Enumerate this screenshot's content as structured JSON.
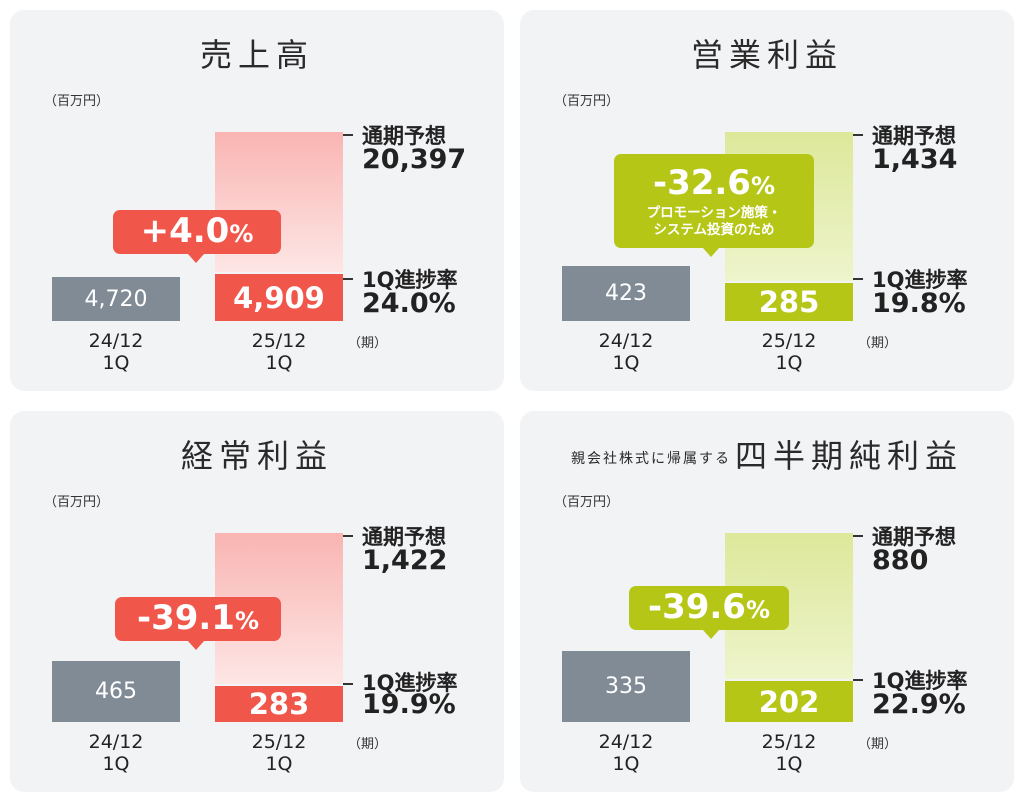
{
  "chart_data": [
    {
      "type": "bar",
      "title": "売上高",
      "unit": "（百万円）",
      "period_label": "（期）",
      "categories": [
        "24/12\n1Q",
        "25/12\n1Q"
      ],
      "values": [
        4720,
        4909
      ],
      "value_labels": [
        "4,720",
        "4,909"
      ],
      "forecast_label": "通期予想",
      "forecast_value": "20,397",
      "progress_label": "1Q進捗率",
      "progress_value": "24.0%",
      "change": "+4.0",
      "change_unit": "%",
      "color": "#f0564a"
    },
    {
      "type": "bar",
      "title": "営業利益",
      "unit": "（百万円）",
      "period_label": "（期）",
      "categories": [
        "24/12\n1Q",
        "25/12\n1Q"
      ],
      "values": [
        423,
        285
      ],
      "value_labels": [
        "423",
        "285"
      ],
      "forecast_label": "通期予想",
      "forecast_value": "1,434",
      "progress_label": "1Q進捗率",
      "progress_value": "19.8%",
      "change": "-32.6",
      "change_unit": "%",
      "change_note": "プロモーション施策・\nシステム投資のため",
      "color": "#b5c617"
    },
    {
      "type": "bar",
      "title": "経常利益",
      "unit": "（百万円）",
      "period_label": "（期）",
      "categories": [
        "24/12\n1Q",
        "25/12\n1Q"
      ],
      "values": [
        465,
        283
      ],
      "value_labels": [
        "465",
        "283"
      ],
      "forecast_label": "通期予想",
      "forecast_value": "1,422",
      "progress_label": "1Q進捗率",
      "progress_value": "19.9%",
      "change": "-39.1",
      "change_unit": "%",
      "color": "#f0564a"
    },
    {
      "type": "bar",
      "title_prefix": "親会社株式に帰属する",
      "title": "四半期純利益",
      "unit": "（百万円）",
      "period_label": "（期）",
      "categories": [
        "24/12\n1Q",
        "25/12\n1Q"
      ],
      "values": [
        335,
        202
      ],
      "value_labels": [
        "335",
        "202"
      ],
      "forecast_label": "通期予想",
      "forecast_value": "880",
      "progress_label": "1Q進捗率",
      "progress_value": "22.9%",
      "change": "-39.6",
      "change_unit": "%",
      "color": "#b5c617"
    }
  ]
}
